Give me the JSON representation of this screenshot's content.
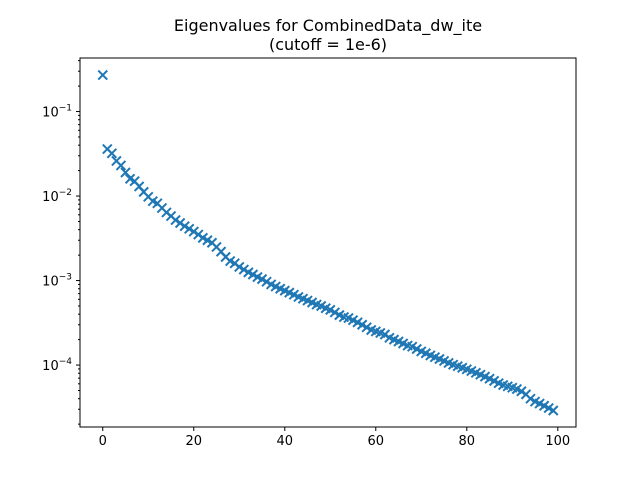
{
  "chart_data": {
    "type": "scatter",
    "title": "Eigenvalues for CombinedData_dw_ite",
    "subtitle": "(cutoff = 1e-6)",
    "xlabel": "",
    "ylabel": "",
    "yscale": "log",
    "xlim": [
      -5,
      104
    ],
    "ylim": [
      1.85e-05,
      0.43
    ],
    "x_ticks": [
      0,
      20,
      40,
      60,
      80,
      100
    ],
    "y_ticks": [
      {
        "value": 0.1,
        "base": "10",
        "exp": "−1"
      },
      {
        "value": 0.01,
        "base": "10",
        "exp": "−2"
      },
      {
        "value": 0.001,
        "base": "10",
        "exp": "−3"
      },
      {
        "value": 0.0001,
        "base": "10",
        "exp": "−4"
      }
    ],
    "marker": "x",
    "color": "#1f77b4",
    "grid": false,
    "series": [
      {
        "x": [
          0,
          1,
          2,
          3,
          4,
          5,
          6,
          7,
          8,
          9,
          10,
          11,
          12,
          13,
          14,
          15,
          16,
          17,
          18,
          19,
          20,
          21,
          22,
          23,
          24,
          25,
          26,
          27,
          28,
          29,
          30,
          31,
          32,
          33,
          34,
          35,
          36,
          37,
          38,
          39,
          40,
          41,
          42,
          43,
          44,
          45,
          46,
          47,
          48,
          49,
          50,
          51,
          52,
          53,
          54,
          55,
          56,
          57,
          58,
          59,
          60,
          61,
          62,
          63,
          64,
          65,
          66,
          67,
          68,
          69,
          70,
          71,
          72,
          73,
          74,
          75,
          76,
          77,
          78,
          79,
          80,
          81,
          82,
          83,
          84,
          85,
          86,
          87,
          88,
          89,
          90,
          91,
          92,
          93,
          94,
          95,
          96,
          97,
          98,
          99
        ],
        "values": [
          0.27,
          0.036,
          0.032,
          0.026,
          0.023,
          0.019,
          0.016,
          0.015,
          0.013,
          0.0112,
          0.0098,
          0.0087,
          0.0082,
          0.0072,
          0.0064,
          0.0058,
          0.0052,
          0.0048,
          0.0044,
          0.0041,
          0.0038,
          0.0035,
          0.0032,
          0.003,
          0.0028,
          0.0025,
          0.0022,
          0.0019,
          0.0017,
          0.0016,
          0.00145,
          0.00135,
          0.00125,
          0.00118,
          0.0011,
          0.00104,
          0.00097,
          0.0009,
          0.00085,
          0.0008,
          0.00076,
          0.00072,
          0.00068,
          0.00064,
          0.00061,
          0.00058,
          0.00055,
          0.00052,
          0.0005,
          0.00047,
          0.00045,
          0.00042,
          0.00039,
          0.00037,
          0.00036,
          0.00034,
          0.00032,
          0.0003,
          0.00028,
          0.00026,
          0.00025,
          0.00024,
          0.00023,
          0.00021,
          0.0002,
          0.00019,
          0.00018,
          0.00017,
          0.000165,
          0.000155,
          0.000145,
          0.000138,
          0.00013,
          0.000124,
          0.000118,
          0.000112,
          0.000106,
          0.000101,
          9.7e-05,
          9.3e-05,
          8.9e-05,
          8.5e-05,
          8.1e-05,
          7.7e-05,
          7.3e-05,
          6.9e-05,
          6.5e-05,
          6.1e-05,
          5.8e-05,
          5.6e-05,
          5.4e-05,
          5.2e-05,
          4.9e-05,
          4.5e-05,
          4e-05,
          3.7e-05,
          3.5e-05,
          3.3e-05,
          3.1e-05,
          2.9e-05
        ]
      }
    ]
  }
}
